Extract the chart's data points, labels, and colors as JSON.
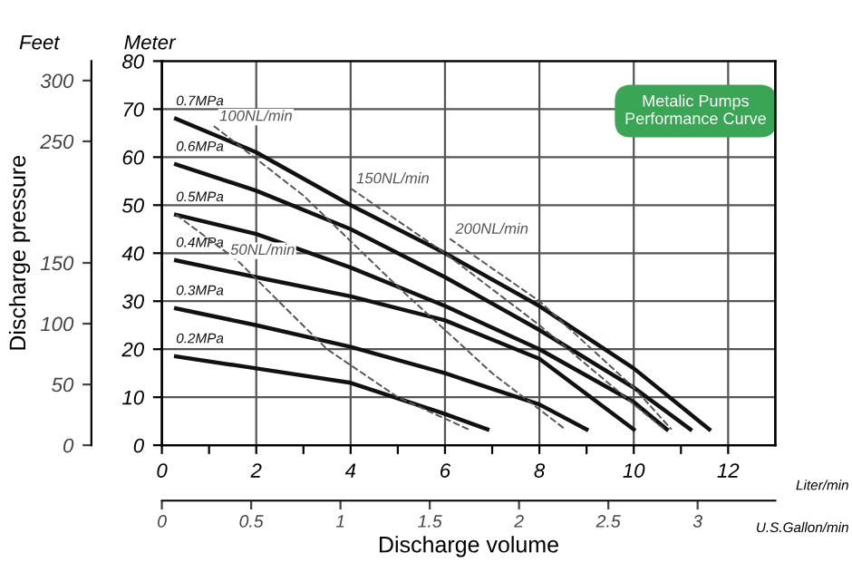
{
  "chart_data": {
    "type": "line",
    "xlabel": "Discharge volume",
    "y2label": "Discharge pressure",
    "annotations": [
      "Meter",
      "Liter/min",
      "U.S.Gallon/min",
      "Metalic Pumps\nPerformance Curve",
      "Feet"
    ],
    "xlim": [
      0,
      13
    ],
    "ylim": [
      0,
      80
    ],
    "xticks": [
      0,
      {
        "value": 1,
        "label": null
      },
      2,
      {
        "value": 3,
        "label": null
      },
      4,
      {
        "value": 5,
        "label": null
      },
      6,
      {
        "value": 7,
        "label": null
      },
      8,
      {
        "value": 9,
        "label": null
      },
      10,
      {
        "value": 11,
        "label": null
      },
      12
    ],
    "yticks": [
      0,
      10,
      20,
      30,
      40,
      50,
      60,
      70,
      80
    ],
    "y2lim": [
      0,
      316
    ],
    "y2ticks": [
      0,
      50,
      100,
      150,
      250,
      300
    ],
    "x2lim": [
      0,
      3.435
    ],
    "x2ticks": [
      0,
      0.5,
      1,
      1.5,
      2,
      2.5,
      3
    ],
    "grid": true,
    "legend": false,
    "marker": "none",
    "series": [
      {
        "name": "0.7MPa",
        "color": "#111111",
        "line_style": "solid",
        "x": [
          0.3,
          2,
          4,
          6,
          8,
          10,
          11.6
        ],
        "values": [
          68,
          61,
          50,
          40,
          29,
          16,
          3.3
        ]
      },
      {
        "name": "0.6MPa",
        "color": "#111111",
        "line_style": "solid",
        "x": [
          0.3,
          2,
          4,
          6,
          8,
          10,
          11.2
        ],
        "values": [
          58.5,
          53,
          45,
          35,
          24,
          12,
          3.3
        ]
      },
      {
        "name": "0.5MPa",
        "color": "#111111",
        "line_style": "solid",
        "x": [
          0.3,
          2,
          4,
          6,
          8,
          10,
          10.7
        ],
        "values": [
          48,
          44,
          37,
          29,
          20,
          9,
          3.3
        ]
      },
      {
        "name": "0.4MPa",
        "color": "#111111",
        "line_style": "solid",
        "x": [
          0.3,
          2,
          4,
          6,
          8,
          10
        ],
        "values": [
          38.5,
          35,
          31,
          26,
          18,
          3.3
        ]
      },
      {
        "name": "0.3MPa",
        "color": "#111111",
        "line_style": "solid",
        "x": [
          0.3,
          2,
          4,
          6,
          8,
          9
        ],
        "values": [
          28.5,
          25,
          20.5,
          15,
          8.5,
          3.3
        ]
      },
      {
        "name": "0.2MPa",
        "color": "#111111",
        "line_style": "solid",
        "x": [
          0.3,
          2,
          4,
          6,
          6.9
        ],
        "values": [
          18.5,
          16,
          13,
          6.5,
          3.3
        ]
      },
      {
        "name": "50NL/min",
        "color": "#555555",
        "line_style": "dashed",
        "x": [
          0.3,
          1.6,
          3.5,
          5,
          6.5
        ],
        "values": [
          48,
          38.5,
          20,
          10,
          3.3
        ]
      },
      {
        "name": "100NL/min",
        "color": "#555555",
        "line_style": "dashed",
        "x": [
          1.1,
          3,
          5,
          7,
          8.55
        ],
        "values": [
          66.5,
          52,
          33,
          15,
          3.3
        ]
      },
      {
        "name": "150NL/min",
        "color": "#555555",
        "line_style": "dashed",
        "x": [
          4,
          6,
          8,
          10,
          10.65
        ],
        "values": [
          53.5,
          40,
          25,
          8.5,
          3.3
        ]
      },
      {
        "name": "200NL/min",
        "color": "#555555",
        "line_style": "dashed",
        "x": [
          6.1,
          8,
          10,
          10.8
        ],
        "values": [
          43,
          30,
          12,
          3.3
        ]
      }
    ]
  }
}
